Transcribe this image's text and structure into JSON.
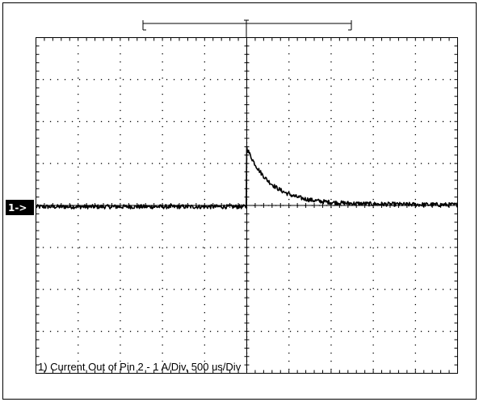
{
  "chart_data": {
    "type": "line",
    "caption": "1) Current Out of Pin 2 - 1 A/Div, 500 us/Div",
    "channel_marker": "1->",
    "x_divisions": 10,
    "y_divisions": 8,
    "grid": "dotted",
    "xlim": [
      -5,
      5
    ],
    "ylim": [
      -4,
      4
    ],
    "xunit": "divisions (500 us/Div)",
    "yunit": "divisions (1 A/Div)",
    "trigger_x": 0,
    "series": [
      {
        "baseline": 0,
        "noise_div": 0.05,
        "step_x": 0.0,
        "peak": 1.38,
        "decay_tau": 0.55,
        "residual": 0.08,
        "residual_decay": 3.0,
        "x": [
          -5.0,
          -4.0,
          -3.0,
          -2.0,
          -1.0,
          0.0,
          0.02,
          0.1,
          0.25,
          0.5,
          0.75,
          1.0,
          1.5,
          2.0,
          2.5,
          3.0,
          4.0,
          5.0
        ],
        "y": [
          0,
          0,
          -0.02,
          0,
          -0.05,
          0,
          1.38,
          1.15,
          0.88,
          0.5,
          0.3,
          0.22,
          0.12,
          0.07,
          0.03,
          0.02,
          0,
          0
        ]
      }
    ],
    "colors": {
      "trace": "#000000",
      "background": "#ffffff",
      "grid": "#000000"
    }
  }
}
